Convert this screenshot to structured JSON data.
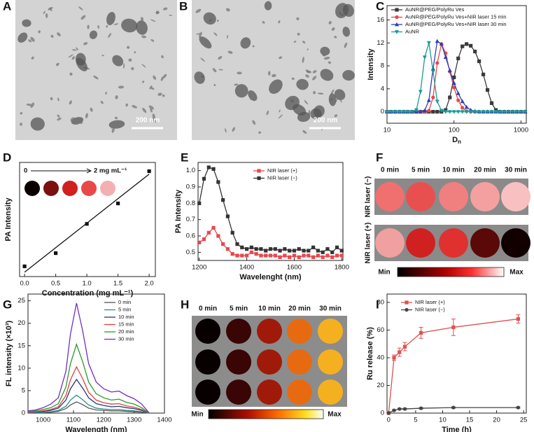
{
  "chart_data": [
    {
      "panel": "C",
      "type": "line",
      "xlabel": "D",
      "xlabel_sub": "n",
      "ylabel": "Intensity",
      "xscale": "log",
      "xlim": [
        10,
        1200
      ],
      "xticks": [
        10,
        100,
        1000
      ],
      "ylim": [
        -2,
        18.5
      ],
      "yticks": [
        0,
        4,
        8,
        12,
        16
      ],
      "legend": "upper left",
      "x": [
        10,
        11.5,
        13.3,
        15.4,
        17.8,
        20.5,
        23.7,
        27.4,
        31.6,
        36.5,
        42.2,
        48.7,
        56.2,
        65,
        75,
        86.6,
        100,
        115.5,
        133.4,
        154,
        177.8,
        205.4,
        237.1,
        273.8,
        316.2,
        365.2,
        421.7,
        487,
        562.3,
        649.4,
        749.9,
        866,
        1000,
        1155
      ],
      "series": [
        {
          "name": "AuNR@PEG/PolyRu Ves",
          "color": "#3a3a3a",
          "marker": "square",
          "values": [
            0,
            0,
            0,
            0,
            0,
            0,
            0,
            0,
            0,
            0,
            0,
            0,
            0,
            0,
            0.3,
            2.5,
            6.0,
            9.3,
            11.4,
            11.8,
            11.5,
            10.5,
            8.8,
            6.5,
            3.8,
            1.5,
            0.3,
            0,
            0,
            0,
            0,
            0,
            0,
            0
          ]
        },
        {
          "name": "AuNR@PEG/PolyRu Ves+NIR laser 15 min",
          "color": "#e8474c",
          "marker": "circle",
          "values": [
            0,
            0,
            0,
            0,
            0,
            0,
            0,
            0,
            0,
            0,
            0.2,
            2.5,
            8.5,
            11.8,
            10.2,
            7.0,
            4.2,
            2.0,
            0.7,
            0.1,
            0,
            0,
            0,
            0,
            0,
            0,
            0,
            0,
            0,
            0,
            0,
            0,
            0,
            0
          ]
        },
        {
          "name": "AuNR@PEG/PolyRu Ves+NIR laser 30 min",
          "color": "#2a3fb0",
          "marker": "triangle",
          "values": [
            0,
            0,
            0,
            0,
            0,
            0,
            0,
            0,
            0,
            0.2,
            2.0,
            7.5,
            12.3,
            11.8,
            9.5,
            7.2,
            5.0,
            3.2,
            1.8,
            0.8,
            0.3,
            0.1,
            0,
            0,
            0,
            0,
            0,
            0,
            0,
            0,
            0,
            0,
            0,
            0
          ]
        },
        {
          "name": "AuNR",
          "color": "#1a9a9a",
          "marker": "triangle-down",
          "values": [
            0,
            0,
            0,
            0,
            0,
            0,
            0,
            0.3,
            3.5,
            9.5,
            12.0,
            7.0,
            1.8,
            0.2,
            0,
            0,
            0,
            0,
            0,
            0,
            0,
            0,
            0,
            0,
            0,
            0,
            0,
            0,
            0,
            0,
            0,
            0,
            0,
            0
          ]
        }
      ]
    },
    {
      "panel": "D",
      "type": "scatter",
      "xlabel": "Concentration (mg mL⁻¹)",
      "ylabel": "PA Intensity",
      "xlim": [
        -0.08,
        2.1
      ],
      "xticks": [
        {
          "value": 0,
          "label": "0.0"
        },
        0.5,
        {
          "value": 1,
          "label": "1.0"
        },
        1.5,
        {
          "value": 2,
          "label": "2.0"
        }
      ],
      "ylim": [
        0,
        3.9
      ],
      "x": [
        0,
        0.5,
        1,
        1.5,
        2
      ],
      "values": [
        0.35,
        0.8,
        1.8,
        2.5,
        3.6
      ],
      "color": "#111111",
      "marker": "square",
      "fit": {
        "x": [
          0,
          2
        ],
        "values": [
          0.15,
          3.5
        ]
      },
      "annotations": [
        "0",
        "2 mg mL⁻¹"
      ]
    },
    {
      "panel": "E",
      "type": "line",
      "xlabel": "Wavelenght (nm)",
      "ylabel": "PA Intensity",
      "xlim": [
        1195,
        1805
      ],
      "xticks": [
        1200,
        1400,
        1600,
        1800
      ],
      "ylim": [
        0.45,
        1.05
      ],
      "yticks": [
        0.5,
        0.6,
        0.7,
        0.8,
        0.9,
        {
          "value": 1,
          "label": "1.0"
        }
      ],
      "legend": "upper right",
      "x": [
        1200,
        1220,
        1240,
        1260,
        1280,
        1300,
        1320,
        1340,
        1360,
        1380,
        1400,
        1420,
        1440,
        1460,
        1480,
        1500,
        1520,
        1540,
        1560,
        1580,
        1600,
        1620,
        1640,
        1660,
        1680,
        1700,
        1720,
        1740,
        1760,
        1780,
        1800
      ],
      "series": [
        {
          "name": "NIR laser (+)",
          "color": "#e8474c",
          "marker": "square",
          "values": [
            0.56,
            0.58,
            0.62,
            0.65,
            0.6,
            0.55,
            0.52,
            0.49,
            0.48,
            0.48,
            0.48,
            0.5,
            0.49,
            0.48,
            0.48,
            0.48,
            0.48,
            0.47,
            0.48,
            0.47,
            0.48,
            0.47,
            0.48,
            0.48,
            0.47,
            0.48,
            0.47,
            0.48,
            0.47,
            0.48,
            0.48
          ]
        },
        {
          "name": "NIR laser (−)",
          "color": "#333333",
          "marker": "square",
          "values": [
            0.8,
            0.95,
            1.02,
            1.01,
            0.93,
            0.82,
            0.72,
            0.62,
            0.55,
            0.53,
            0.52,
            0.53,
            0.52,
            0.52,
            0.51,
            0.52,
            0.52,
            0.51,
            0.52,
            0.51,
            0.51,
            0.52,
            0.51,
            0.51,
            0.53,
            0.51,
            0.5,
            0.52,
            0.5,
            0.53,
            0.51
          ]
        }
      ]
    },
    {
      "panel": "G",
      "type": "line",
      "xlabel": "Wavelength (nm)",
      "ylabel": "FL intensity (×10³)",
      "xlim": [
        950,
        1400
      ],
      "xticks": [
        1000,
        1100,
        1200,
        1300,
        1400
      ],
      "ylim": [
        0,
        26.5
      ],
      "yticks": [
        0,
        5,
        10,
        15,
        20,
        25
      ],
      "legend": "upper right",
      "x": [
        950,
        975,
        1000,
        1025,
        1050,
        1075,
        1090,
        1110,
        1130,
        1150,
        1175,
        1200,
        1225,
        1250,
        1275,
        1300,
        1325,
        1350
      ],
      "series": [
        {
          "name": "0 min",
          "color": "#555555",
          "values": [
            0.1,
            0.1,
            0.1,
            0.2,
            0.4,
            1.0,
            1.8,
            2.5,
            1.9,
            1.1,
            0.7,
            0.6,
            0.5,
            0.5,
            0.4,
            0.3,
            0.2,
            0
          ]
        },
        {
          "name": "5 min",
          "color": "#2a8c8c",
          "values": [
            0.1,
            0.1,
            0.2,
            0.3,
            0.6,
            1.5,
            2.9,
            4.0,
            3.0,
            1.8,
            1.1,
            0.9,
            0.8,
            0.8,
            0.6,
            0.5,
            0.3,
            0
          ]
        },
        {
          "name": "10 min",
          "color": "#223a7a",
          "values": [
            0.2,
            0.2,
            0.4,
            0.6,
            1.1,
            2.9,
            5.4,
            7.5,
            5.6,
            3.4,
            2.1,
            1.7,
            1.4,
            1.5,
            1.2,
            1.0,
            0.6,
            0
          ]
        },
        {
          "name": "15 min",
          "color": "#e04040",
          "values": [
            0.2,
            0.3,
            0.5,
            0.8,
            1.4,
            3.9,
            7.4,
            10.3,
            7.7,
            4.6,
            2.9,
            2.3,
            2.0,
            2.1,
            1.6,
            1.3,
            0.8,
            0
          ]
        },
        {
          "name": "20 min",
          "color": "#2a9a2a",
          "values": [
            0.3,
            0.5,
            0.8,
            1.2,
            2.1,
            5.8,
            11.0,
            15.3,
            11.5,
            6.9,
            4.3,
            3.4,
            2.9,
            3.1,
            2.4,
            2.0,
            1.2,
            0
          ]
        },
        {
          "name": "30 min",
          "color": "#7030c0",
          "values": [
            0.5,
            0.7,
            1.2,
            2.0,
            3.4,
            9.3,
            17.6,
            24.5,
            18.4,
            11.0,
            6.9,
            5.4,
            4.7,
            4.9,
            3.9,
            3.2,
            2.0,
            0
          ]
        }
      ]
    },
    {
      "panel": "I",
      "type": "line",
      "xlabel": "Time (h)",
      "ylabel": "Ru release (%)",
      "xlim": [
        -0.3,
        25.5
      ],
      "xticks": [
        0,
        5,
        10,
        15,
        20,
        25
      ],
      "ylim": [
        0,
        86
      ],
      "yticks": [
        0,
        20,
        40,
        60,
        80
      ],
      "legend": "upper left",
      "x": [
        0,
        1,
        2,
        3,
        6,
        12,
        24
      ],
      "series": [
        {
          "name": "NIR laser (+)",
          "color": "#e05050",
          "marker": "square",
          "values": [
            0,
            40,
            44,
            48,
            58,
            62,
            68
          ],
          "errors": [
            0,
            2,
            3,
            3,
            4,
            6,
            3
          ]
        },
        {
          "name": "NIR laser (−)",
          "color": "#444444",
          "marker": "circle",
          "values": [
            0,
            2,
            3,
            3,
            3.5,
            4,
            4
          ],
          "errors": [
            0,
            0.5,
            0.5,
            0.5,
            0.5,
            0.5,
            0.5
          ]
        }
      ]
    }
  ],
  "image_panels": [
    {
      "panel": "A",
      "scale_bar": "200 nm"
    },
    {
      "panel": "B",
      "scale_bar": "200 nm"
    },
    {
      "panel": "F",
      "columns": [
        "0 min",
        "5 min",
        "10 min",
        "20 min",
        "30 min"
      ],
      "rows": [
        "NIR laser (−)",
        "NIR laser (+)"
      ],
      "colorbar": [
        "Min",
        "Max"
      ]
    },
    {
      "panel": "H",
      "columns": [
        "0 min",
        "5 min",
        "10 min",
        "20 min",
        "30 min"
      ],
      "colorbar": [
        "Min",
        "Max"
      ]
    }
  ]
}
